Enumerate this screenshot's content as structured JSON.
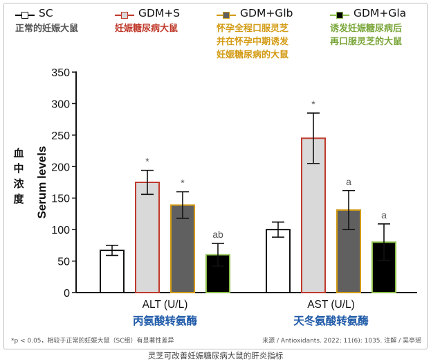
{
  "legend": [
    {
      "name": "SC",
      "desc_lines": [
        "正常的妊娠大鼠"
      ],
      "desc_color": "#555555",
      "fill": "#ffffff",
      "stroke": "#111111"
    },
    {
      "name": "GDM+S",
      "desc_lines": [
        "妊娠糖尿病大鼠"
      ],
      "desc_color": "#c0392b",
      "fill": "#d9d9d9",
      "stroke": "#c0392b"
    },
    {
      "name": "GDM+Glb",
      "desc_lines": [
        "怀孕全程口服灵芝",
        "并在怀孕中期诱发",
        "妊娠糖尿病的大鼠"
      ],
      "desc_color": "#d39b14",
      "fill": "#606060",
      "stroke": "#d39b14"
    },
    {
      "name": "GDM+Gla",
      "desc_lines": [
        "诱发妊娠糖尿病后",
        "再口服灵芝的大鼠"
      ],
      "desc_color": "#7aa63a",
      "fill": "#000000",
      "stroke": "#8cbf4a"
    }
  ],
  "y_axis_label_cn": [
    "血",
    "中",
    "浓",
    "度"
  ],
  "chart_data": {
    "type": "bar",
    "ylabel": "Serum levels",
    "ylim": [
      0,
      350
    ],
    "yticks": [
      0,
      50,
      100,
      150,
      200,
      250,
      300,
      350
    ],
    "grid": false,
    "legend_position": "top",
    "groups": [
      {
        "label": "ALT (U/L)",
        "label_cn": "丙氨酸转氨酶"
      },
      {
        "label": "AST (U/L)",
        "label_cn": "天冬氨酸转氨酶"
      }
    ],
    "series": [
      {
        "name": "SC",
        "values": [
          67,
          100
        ],
        "errors": [
          8,
          12
        ],
        "annotations": [
          "",
          ""
        ]
      },
      {
        "name": "GDM+S",
        "values": [
          175,
          245
        ],
        "errors": [
          19,
          40
        ],
        "annotations": [
          "*",
          "*"
        ]
      },
      {
        "name": "GDM+Glb",
        "values": [
          139,
          131
        ],
        "errors": [
          21,
          31
        ],
        "annotations": [
          "*",
          "a"
        ]
      },
      {
        "name": "GDM+Gla",
        "values": [
          60,
          80
        ],
        "errors": [
          18,
          29
        ],
        "annotations": [
          "ab",
          "a"
        ]
      }
    ]
  },
  "footnote": "*p < 0.05，相较于正常的妊娠大鼠（SC组）有显著性差异",
  "source": "来源 / Antioxidants. 2022; 11(6): 1035.   注解 / 吴亭瑶",
  "caption": "灵芝可改善妊娠糖尿病大鼠的肝炎指标"
}
